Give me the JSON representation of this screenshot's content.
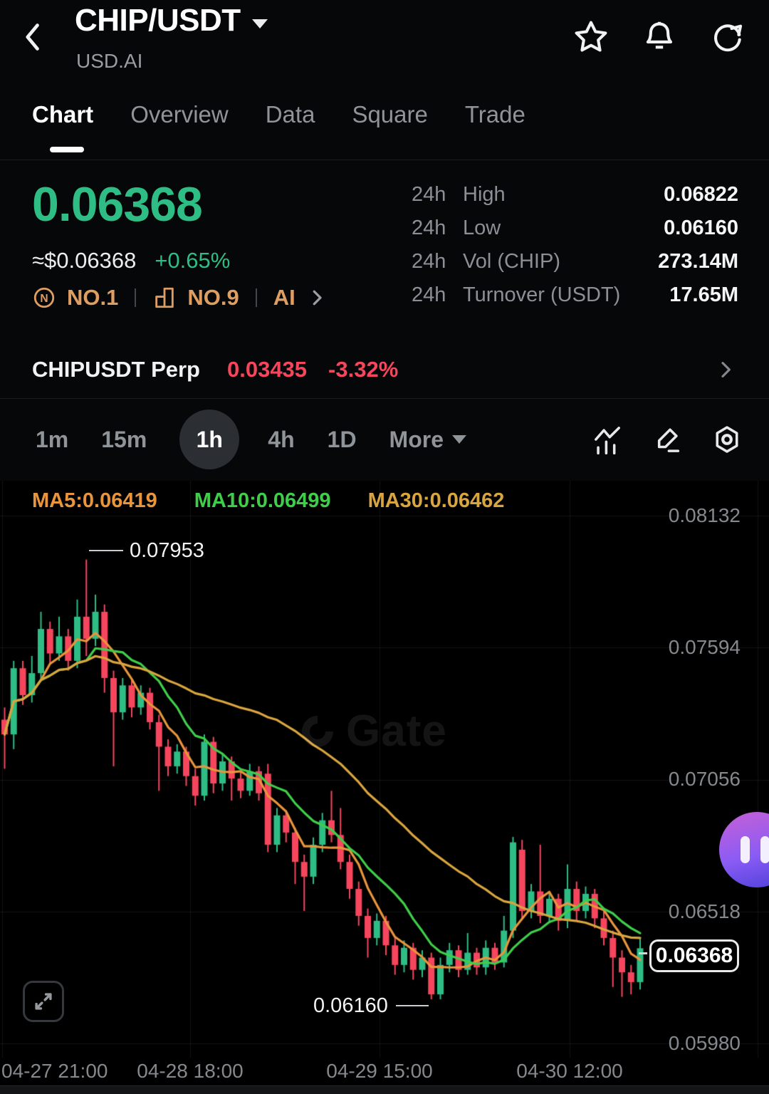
{
  "header": {
    "title": "CHIP/USDT",
    "subtitle": "USD.AI"
  },
  "tabs": [
    {
      "label": "Chart",
      "active": true
    },
    {
      "label": "Overview",
      "active": false
    },
    {
      "label": "Data",
      "active": false
    },
    {
      "label": "Square",
      "active": false
    },
    {
      "label": "Trade",
      "active": false
    }
  ],
  "ticker": {
    "last_price": "0.06368",
    "fiat_value": "≈$0.06368",
    "change_24h": "+0.65%",
    "rank_badge_1": "NO.1",
    "rank_badge_2": "NO.9",
    "ai_badge": "AI"
  },
  "stats": [
    {
      "period": "24h",
      "label": "High",
      "value": "0.06822"
    },
    {
      "period": "24h",
      "label": "Low",
      "value": "0.06160"
    },
    {
      "period": "24h",
      "label": "Vol (CHIP)",
      "value": "273.14M"
    },
    {
      "period": "24h",
      "label": "Turnover (USDT)",
      "value": "17.65M"
    }
  ],
  "perp": {
    "name": "CHIPUSDT Perp",
    "price": "0.03435",
    "change": "-3.32%"
  },
  "toolbar": {
    "timeframes": [
      "1m",
      "15m",
      "1h",
      "4h",
      "1D"
    ],
    "active_timeframe": "1h",
    "more_label": "More"
  },
  "indicators": [
    {
      "label": "MA5:0.06419",
      "color": "#E8953C"
    },
    {
      "label": "MA10:0.06499",
      "color": "#3FCE4A"
    },
    {
      "label": "MA30:0.06462",
      "color": "#D9A53F"
    }
  ],
  "watermark": "Gate",
  "colors": {
    "up": "#2EBD85",
    "down": "#F6465D",
    "ma5": "#E8953C",
    "ma10": "#3FCE4A",
    "ma30": "#D9A53F",
    "grid": "rgba(255,255,255,0.07)",
    "accent_badge": "#DE9E62"
  },
  "chart_data": {
    "type": "candlestick",
    "title": "CHIP/USDT 1h candles with MA5/MA10/MA30",
    "ylim": [
      0.0598,
      0.08132
    ],
    "grid": true,
    "y_axis_labels": [
      "0.08132",
      "0.07594",
      "0.07056",
      "0.06518",
      "0.05980"
    ],
    "x_axis_labels": [
      "04-27 21:00",
      "04-28 18:00",
      "04-29 15:00",
      "04-30 12:00"
    ],
    "annotations": {
      "high": "0.07953",
      "low": "0.06160",
      "last": "0.06368"
    },
    "ma_periods": [
      5,
      10,
      30
    ],
    "candles": [
      [
        0.073,
        0.0735,
        0.071,
        0.0724
      ],
      [
        0.0724,
        0.0754,
        0.0718,
        0.0751
      ],
      [
        0.0751,
        0.0754,
        0.0736,
        0.074
      ],
      [
        0.074,
        0.0756,
        0.0737,
        0.0749
      ],
      [
        0.0749,
        0.0774,
        0.0746,
        0.0767
      ],
      [
        0.0767,
        0.077,
        0.0753,
        0.0757
      ],
      [
        0.0757,
        0.0772,
        0.0754,
        0.0764
      ],
      [
        0.0764,
        0.0767,
        0.075,
        0.0754
      ],
      [
        0.0754,
        0.0779,
        0.0751,
        0.0772
      ],
      [
        0.0772,
        0.07953,
        0.0756,
        0.0763
      ],
      [
        0.0763,
        0.0781,
        0.076,
        0.0774
      ],
      [
        0.0774,
        0.0777,
        0.0741,
        0.0747
      ],
      [
        0.0747,
        0.075,
        0.0711,
        0.0733
      ],
      [
        0.0733,
        0.0747,
        0.073,
        0.0744
      ],
      [
        0.0744,
        0.0747,
        0.0731,
        0.0735
      ],
      [
        0.0735,
        0.0744,
        0.0732,
        0.0741
      ],
      [
        0.0741,
        0.0743,
        0.0726,
        0.0729
      ],
      [
        0.0729,
        0.0732,
        0.0701,
        0.0719
      ],
      [
        0.0719,
        0.0722,
        0.0707,
        0.0711
      ],
      [
        0.0711,
        0.072,
        0.0708,
        0.0717
      ],
      [
        0.0717,
        0.0719,
        0.0703,
        0.0707
      ],
      [
        0.0707,
        0.071,
        0.0695,
        0.0699
      ],
      [
        0.0699,
        0.0724,
        0.0697,
        0.0721
      ],
      [
        0.0721,
        0.0723,
        0.07,
        0.0704
      ],
      [
        0.0704,
        0.0716,
        0.0701,
        0.0713
      ],
      [
        0.0713,
        0.0715,
        0.0697,
        0.0706
      ],
      [
        0.0706,
        0.0709,
        0.0698,
        0.0701
      ],
      [
        0.0701,
        0.0712,
        0.0699,
        0.0709
      ],
      [
        0.0709,
        0.0711,
        0.0697,
        0.07
      ],
      [
        0.0708,
        0.0712,
        0.0676,
        0.0679
      ],
      [
        0.0679,
        0.0694,
        0.0676,
        0.0691
      ],
      [
        0.0691,
        0.0693,
        0.068,
        0.0684
      ],
      [
        0.0684,
        0.0686,
        0.0663,
        0.0672
      ],
      [
        0.0672,
        0.0675,
        0.0652,
        0.0666
      ],
      [
        0.0666,
        0.0682,
        0.0663,
        0.0679
      ],
      [
        0.0679,
        0.0692,
        0.0676,
        0.0689
      ],
      [
        0.0689,
        0.0701,
        0.068,
        0.0683
      ],
      [
        0.0683,
        0.0694,
        0.0669,
        0.0672
      ],
      [
        0.0672,
        0.0675,
        0.0657,
        0.0661
      ],
      [
        0.0661,
        0.0664,
        0.0646,
        0.065
      ],
      [
        0.065,
        0.0653,
        0.0633,
        0.0641
      ],
      [
        0.0641,
        0.0651,
        0.0638,
        0.0648
      ],
      [
        0.0648,
        0.065,
        0.0634,
        0.0638
      ],
      [
        0.0638,
        0.0641,
        0.0626,
        0.063
      ],
      [
        0.063,
        0.064,
        0.0627,
        0.0637
      ],
      [
        0.0637,
        0.0639,
        0.0624,
        0.0628
      ],
      [
        0.0628,
        0.0636,
        0.0625,
        0.0633
      ],
      [
        0.0633,
        0.0635,
        0.0616,
        0.0618
      ],
      [
        0.0618,
        0.0633,
        0.0616,
        0.063
      ],
      [
        0.063,
        0.0639,
        0.0627,
        0.0636
      ],
      [
        0.0636,
        0.0638,
        0.0625,
        0.0628
      ],
      [
        0.0628,
        0.0643,
        0.0626,
        0.0635
      ],
      [
        0.0635,
        0.0637,
        0.0626,
        0.0629
      ],
      [
        0.0629,
        0.064,
        0.0626,
        0.0637
      ],
      [
        0.0637,
        0.0639,
        0.0628,
        0.0631
      ],
      [
        0.0631,
        0.065,
        0.0629,
        0.0644
      ],
      [
        0.0644,
        0.06822,
        0.0641,
        0.068
      ],
      [
        0.0677,
        0.0681,
        0.0649,
        0.0652
      ],
      [
        0.0652,
        0.0663,
        0.0649,
        0.066
      ],
      [
        0.066,
        0.0679,
        0.0647,
        0.065
      ],
      [
        0.065,
        0.066,
        0.0647,
        0.0657
      ],
      [
        0.0657,
        0.0659,
        0.0644,
        0.0648
      ],
      [
        0.0648,
        0.0671,
        0.0645,
        0.0661
      ],
      [
        0.0661,
        0.0664,
        0.0648,
        0.0652
      ],
      [
        0.0652,
        0.0662,
        0.0649,
        0.0659
      ],
      [
        0.0659,
        0.0661,
        0.0645,
        0.0649
      ],
      [
        0.0649,
        0.0652,
        0.0638,
        0.0641
      ],
      [
        0.0641,
        0.0644,
        0.0621,
        0.0633
      ],
      [
        0.0633,
        0.0636,
        0.0617,
        0.0627
      ],
      [
        0.0627,
        0.063,
        0.0618,
        0.0623
      ],
      [
        0.0623,
        0.0641,
        0.062,
        0.06368
      ]
    ]
  }
}
